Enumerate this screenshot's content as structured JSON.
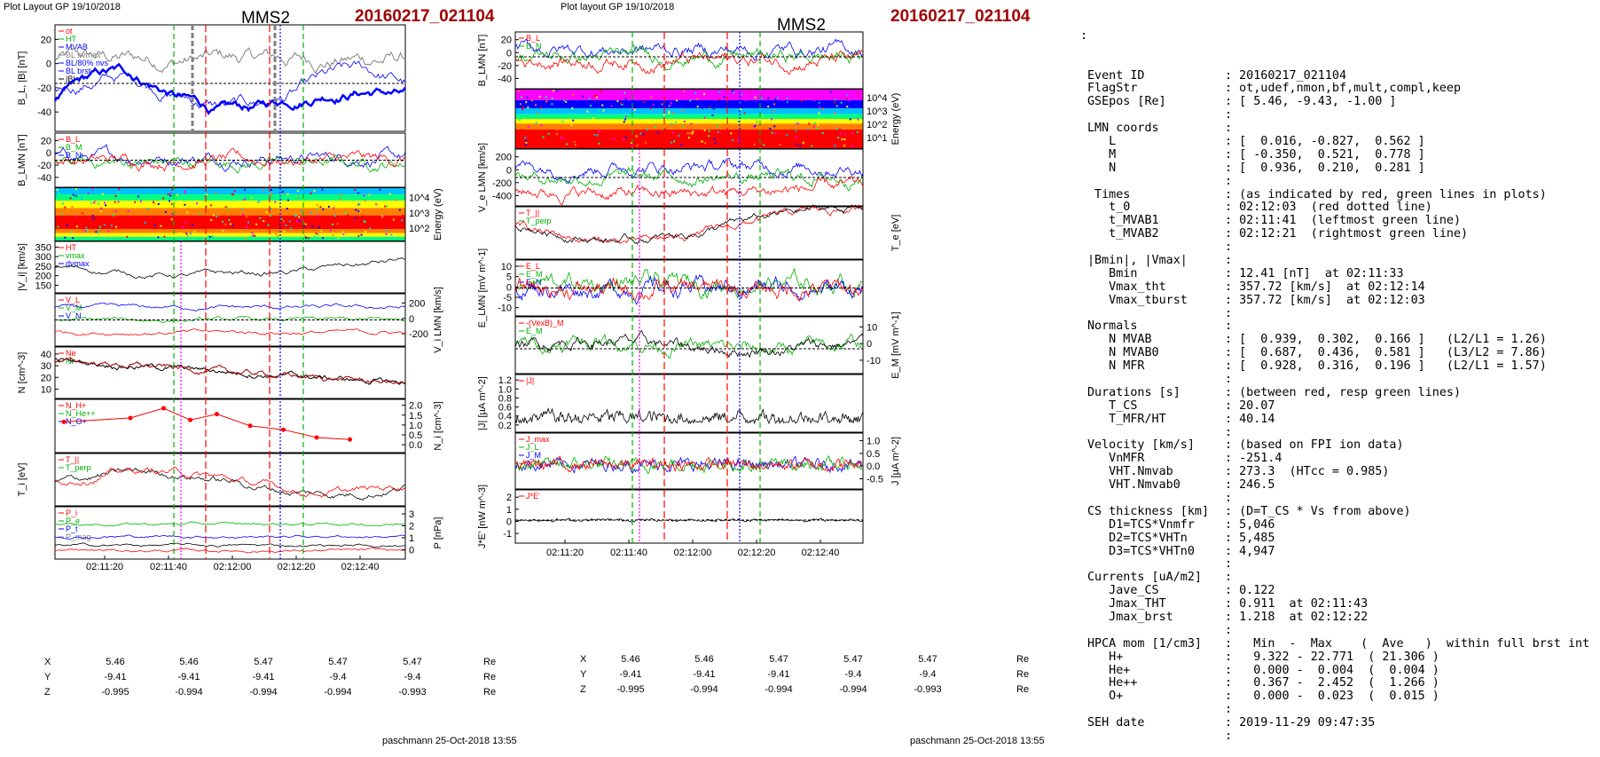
{
  "header_left": {
    "layout_label": "Plot Layout GP 19/10/2018",
    "spacecraft": "MMS2",
    "event": "20160217_021104"
  },
  "header_mid": {
    "layout_label": "Plot layout GP 19/10/2018",
    "spacecraft": "MMS2",
    "event": "20160217_021104"
  },
  "time_ticks": [
    "02:11:20",
    "02:11:40",
    "02:12:00",
    "02:12:20",
    "02:12:40"
  ],
  "coords_left": {
    "rows": [
      {
        "label": "X",
        "values": [
          "5.46",
          "5.46",
          "5.47",
          "5.47",
          "5.47"
        ],
        "unit": "Re"
      },
      {
        "label": "Y",
        "values": [
          "-9.41",
          "-9.41",
          "-9.41",
          "-9.4",
          "-9.4"
        ],
        "unit": "Re"
      },
      {
        "label": "Z",
        "values": [
          "-0.995",
          "-0.994",
          "-0.994",
          "-0.994",
          "-0.993"
        ],
        "unit": "Re"
      }
    ]
  },
  "coords_mid": {
    "rows": [
      {
        "label": "X",
        "values": [
          "5.46",
          "5.46",
          "5.47",
          "5.47",
          "5.47"
        ],
        "unit": "Re"
      },
      {
        "label": "Y",
        "values": [
          "-9.41",
          "-9.41",
          "-9.41",
          "-9.4",
          "-9.4"
        ],
        "unit": "Re"
      },
      {
        "label": "Z",
        "values": [
          "-0.995",
          "-0.994",
          "-0.994",
          "-0.994",
          "-0.993"
        ],
        "unit": "Re"
      }
    ]
  },
  "footer_left": "paschmann 25-Oct-2018 13:55",
  "footer_mid": "paschmann 25-Oct-2018 13:55",
  "colors": {
    "red": "#ff0000",
    "green": "#00b000",
    "blue": "#0000ff",
    "dark": "#000000",
    "gray": "#808080",
    "magenta": "#ff00ff",
    "event_red": "#a00000"
  },
  "left_panels": [
    {
      "ylabel": "B_L, |B| [nT]",
      "ticks": [
        "20",
        "0",
        "-20",
        "-40"
      ],
      "right": false,
      "legend": [
        "ot",
        "HT",
        "MVAB",
        "BL nvmax",
        "BL/80% nvs",
        "BL brst",
        "|B|"
      ]
    },
    {
      "ylabel": "B_LMN [nT]",
      "ticks": [
        "20",
        "0",
        "-20",
        "-40"
      ],
      "right": false,
      "legend": [
        "B_L",
        "B_M",
        "B_N"
      ]
    },
    {
      "ylabel": "Energy (eV)",
      "ticks": [
        "10^4",
        "10^3",
        "10^2"
      ],
      "right": true,
      "legend": []
    },
    {
      "ylabel": "|V_i| [km/s]",
      "ticks": [
        "350",
        "300",
        "250",
        "200",
        "150"
      ],
      "right": false,
      "legend": [
        "HT",
        "vmax",
        "dvmax"
      ]
    },
    {
      "ylabel": "V_i LMN [km/s]",
      "ticks": [
        "200",
        "0",
        "-200"
      ],
      "right": true,
      "legend": [
        "V_L",
        "V_M",
        "V_N"
      ]
    },
    {
      "ylabel": "N [cm^-3]",
      "ticks": [
        "40",
        "30",
        "20",
        "10"
      ],
      "right": false,
      "legend": [
        "Ne",
        "Ni"
      ]
    },
    {
      "ylabel": "N_i [cm^-3]",
      "ticks": [
        "2.0",
        "1.5",
        "1.0",
        "0.5",
        "0.0"
      ],
      "right": true,
      "legend": [
        "N_H+",
        "N_He++",
        "N_O+"
      ]
    },
    {
      "ylabel": "T_i [eV]",
      "ticks": [],
      "right": false,
      "legend": [
        "T_||",
        "T_perp"
      ]
    },
    {
      "ylabel": "P [nPa]",
      "ticks": [
        "3",
        "2",
        "1",
        "0"
      ],
      "right": true,
      "legend": [
        "P_i",
        "P_e",
        "P_t",
        "P_mag"
      ]
    }
  ],
  "mid_panels": [
    {
      "ylabel": "B_LMN [nT]",
      "ticks": [
        "20",
        "0",
        "-20",
        "-40"
      ],
      "right": false,
      "legend": [
        "B_L",
        "B_N"
      ]
    },
    {
      "ylabel": "Energy (eV)",
      "ticks": [
        "10^4",
        "10^3",
        "10^2",
        "10^1"
      ],
      "right": true,
      "legend": []
    },
    {
      "ylabel": "V_e LMN [km/s]",
      "ticks": [
        "200",
        "0",
        "-200",
        "-400"
      ],
      "right": false,
      "legend": []
    },
    {
      "ylabel": "T_e [eV]",
      "ticks": [],
      "right": true,
      "legend": [
        "T_||",
        "T_perp"
      ]
    },
    {
      "ylabel": "E_LMN [mV m^-1]",
      "ticks": [
        "10",
        "5",
        "0",
        "-5",
        "-10"
      ],
      "right": false,
      "legend": [
        "E_L",
        "E_M",
        "E_N"
      ]
    },
    {
      "ylabel": "E_M [mV m^-1]",
      "ticks": [
        "10",
        "0",
        "-10"
      ],
      "right": true,
      "legend": [
        "-(VexB)_M",
        "E_M"
      ]
    },
    {
      "ylabel": "|J| [µA m^-2]",
      "ticks": [
        "1.2",
        "1.0",
        "0.8",
        "0.6",
        "0.4",
        "0.2"
      ],
      "right": false,
      "legend": [
        "|J|"
      ]
    },
    {
      "ylabel": "J [µA m^-2]",
      "ticks": [
        "1.0",
        "0.5",
        "0.0",
        "-0.5"
      ],
      "right": true,
      "legend": [
        "J_max",
        "J_L",
        "J_M",
        "J_N"
      ]
    },
    {
      "ylabel": "J*E' [nW m^-3]",
      "ticks": [
        "2",
        "1",
        "0",
        "-1"
      ],
      "right": false,
      "legend": [
        "J*E'"
      ]
    }
  ],
  "info": [
    {
      "k": "Event ID",
      "v": ": 20160217_021104"
    },
    {
      "k": "FlagStr",
      "v": ": ot,udef,nmon,bf,mult,compl,keep"
    },
    {
      "k": "GSEpos [Re]",
      "v": ": [ 5.46, -9.43, -1.00 ]"
    },
    {
      "k": "",
      "v": ":"
    },
    {
      "k": "LMN coords",
      "v": ":"
    },
    {
      "k": "   L",
      "v": ": [  0.016, -0.827,  0.562 ]"
    },
    {
      "k": "   M",
      "v": ": [ -0.350,  0.521,  0.778 ]"
    },
    {
      "k": "   N",
      "v": ": [  0.936,  0.210,  0.281 ]"
    },
    {
      "k": "",
      "v": ":"
    },
    {
      "k": " Times",
      "v": ": (as indicated by red, green lines in plots)"
    },
    {
      "k": "   t_0",
      "v": ": 02:12:03  (red dotted line)"
    },
    {
      "k": "   t_MVAB1",
      "v": ": 02:11:41  (leftmost green line)"
    },
    {
      "k": "   t_MVAB2",
      "v": ": 02:12:21  (rightmost green line)"
    },
    {
      "k": "",
      "v": ":"
    },
    {
      "k": "|Bmin|, |Vmax|",
      "v": ":"
    },
    {
      "k": "   Bmin",
      "v": ": 12.41 [nT]  at 02:11:33"
    },
    {
      "k": "   Vmax_tht",
      "v": ": 357.72 [km/s]  at 02:12:14"
    },
    {
      "k": "   Vmax_tburst",
      "v": ": 357.72 [km/s]  at 02:12:03"
    },
    {
      "k": "",
      "v": ":"
    },
    {
      "k": "Normals",
      "v": ":"
    },
    {
      "k": "   N MVAB",
      "v": ": [  0.939,  0.302,  0.166 ]   (L2/L1 = 1.26)"
    },
    {
      "k": "   N MVAB0",
      "v": ": [  0.687,  0.436,  0.581 ]   (L3/L2 = 7.86)"
    },
    {
      "k": "   N MFR",
      "v": ": [  0.928,  0.316,  0.196 ]   (L2/L1 = 1.57)"
    },
    {
      "k": "",
      "v": ":"
    },
    {
      "k": "Durations [s]",
      "v": ": (between red, resp green lines)"
    },
    {
      "k": "   T_CS",
      "v": ": 20.07"
    },
    {
      "k": "   T_MFR/HT",
      "v": ": 40.14"
    },
    {
      "k": "",
      "v": ":"
    },
    {
      "k": "Velocity [km/s]",
      "v": ": (based on FPI ion data)"
    },
    {
      "k": "   VnMFR",
      "v": ": -251.4"
    },
    {
      "k": "   VHT.Nmvab",
      "v": ": 273.3  (HTcc = 0.985)"
    },
    {
      "k": "   VHT.Nmvab0",
      "v": ": 246.5"
    },
    {
      "k": "",
      "v": ":"
    },
    {
      "k": "CS thickness [km]",
      "v": ": (D=T_CS * Vs from above)"
    },
    {
      "k": "   D1=TCS*Vnmfr",
      "v": ": 5,046"
    },
    {
      "k": "   D2=TCS*VHTn",
      "v": ": 5,485"
    },
    {
      "k": "   D3=TCS*VHTn0",
      "v": ": 4,947"
    },
    {
      "k": "",
      "v": ":"
    },
    {
      "k": "Currents [uA/m2]",
      "v": ":"
    },
    {
      "k": "   Jave_CS",
      "v": ": 0.122"
    },
    {
      "k": "   Jmax_THT",
      "v": ": 0.911  at 02:11:43"
    },
    {
      "k": "   Jmax_brst",
      "v": ": 1.218  at 02:12:22"
    },
    {
      "k": "",
      "v": ":"
    },
    {
      "k": "HPCA mom [1/cm3]",
      "v": ":   Min  -  Max    (  Ave   )  within full brst int"
    },
    {
      "k": "   H+",
      "v": ":   9.322 - 22.771  ( 21.306 )"
    },
    {
      "k": "   He+",
      "v": ":   0.000 -  0.004  (  0.004 )"
    },
    {
      "k": "   He++",
      "v": ":   0.367 -  2.452  (  1.266 )"
    },
    {
      "k": "   O+",
      "v": ":   0.000 -  0.023  (  0.015 )"
    },
    {
      "k": "",
      "v": ":"
    },
    {
      "k": "SEH date",
      "v": ": 2019-11-29 09:47:35"
    },
    {
      "k": "",
      "v": ":"
    }
  ],
  "info_top_colon": ":"
}
